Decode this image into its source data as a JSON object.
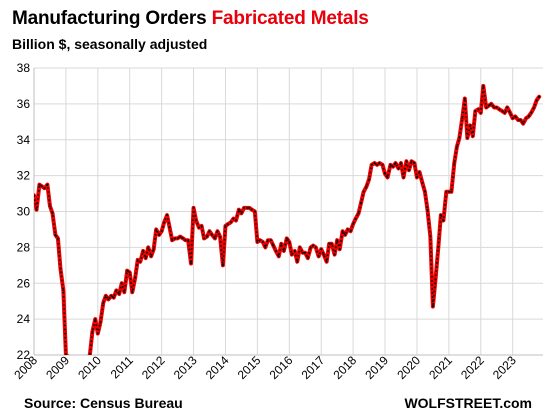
{
  "chart_data": {
    "type": "line",
    "title": "Manufacturing Orders",
    "title_highlight": "Fabricated Metals",
    "subtitle": "Billion $, seasonally adjusted",
    "ylim": [
      22,
      38
    ],
    "yticks": [
      22,
      24,
      26,
      28,
      30,
      32,
      34,
      36,
      38
    ],
    "xlim": [
      2008,
      2023.95
    ],
    "xticks": [
      "2008",
      "2009",
      "2010",
      "2011",
      "2012",
      "2013",
      "2014",
      "2015",
      "2016",
      "2017",
      "2018",
      "2019",
      "2020",
      "2021",
      "2022",
      "2023"
    ],
    "grid": true,
    "line_color": "#ee0000",
    "marker_color": "#000000",
    "series": [
      {
        "x": [
          2008.0,
          2008.08,
          2008.17,
          2008.25,
          2008.33,
          2008.42,
          2008.5,
          2008.58,
          2008.67,
          2008.75,
          2008.83,
          2008.92,
          2009.0,
          2009.25,
          2009.5,
          2009.75,
          2009.83,
          2009.92,
          2010.0,
          2010.08,
          2010.17,
          2010.25,
          2010.33,
          2010.42,
          2010.5,
          2010.58,
          2010.67,
          2010.75,
          2010.83,
          2010.92,
          2011.0,
          2011.08,
          2011.17,
          2011.25,
          2011.33,
          2011.42,
          2011.5,
          2011.58,
          2011.67,
          2011.75,
          2011.83,
          2011.92,
          2012.0,
          2012.08,
          2012.17,
          2012.25,
          2012.33,
          2012.42,
          2012.5,
          2012.58,
          2012.67,
          2012.75,
          2012.83,
          2012.92,
          2013.0,
          2013.08,
          2013.17,
          2013.25,
          2013.33,
          2013.42,
          2013.5,
          2013.58,
          2013.67,
          2013.75,
          2013.83,
          2013.92,
          2014.0,
          2014.08,
          2014.17,
          2014.25,
          2014.33,
          2014.42,
          2014.5,
          2014.58,
          2014.67,
          2014.75,
          2014.83,
          2014.92,
          2015.0,
          2015.08,
          2015.17,
          2015.25,
          2015.33,
          2015.42,
          2015.5,
          2015.58,
          2015.67,
          2015.75,
          2015.83,
          2015.92,
          2016.0,
          2016.08,
          2016.17,
          2016.25,
          2016.33,
          2016.42,
          2016.5,
          2016.58,
          2016.67,
          2016.75,
          2016.83,
          2016.92,
          2017.0,
          2017.08,
          2017.17,
          2017.25,
          2017.33,
          2017.42,
          2017.5,
          2017.58,
          2017.67,
          2017.75,
          2017.83,
          2017.92,
          2018.0,
          2018.08,
          2018.17,
          2018.25,
          2018.33,
          2018.42,
          2018.5,
          2018.58,
          2018.67,
          2018.75,
          2018.83,
          2018.92,
          2019.0,
          2019.08,
          2019.17,
          2019.25,
          2019.33,
          2019.42,
          2019.5,
          2019.58,
          2019.67,
          2019.75,
          2019.83,
          2019.92,
          2020.0,
          2020.08,
          2020.17,
          2020.25,
          2020.33,
          2020.42,
          2020.5,
          2020.58,
          2020.67,
          2020.75,
          2020.83,
          2020.92,
          2021.0,
          2021.08,
          2021.17,
          2021.25,
          2021.33,
          2021.42,
          2021.5,
          2021.58,
          2021.67,
          2021.75,
          2021.83,
          2021.92,
          2022.0,
          2022.08,
          2022.17,
          2022.25,
          2022.33,
          2022.42,
          2022.5,
          2022.58,
          2022.67,
          2022.75,
          2022.83,
          2022.92,
          2023.0,
          2023.08,
          2023.17,
          2023.25,
          2023.33,
          2023.42,
          2023.5,
          2023.58,
          2023.67,
          2023.75,
          2023.83
        ],
        "y": [
          30.9,
          30.1,
          31.5,
          31.4,
          31.3,
          31.5,
          30.3,
          29.9,
          28.7,
          28.5,
          26.8,
          25.6,
          22.0,
          21.7,
          21.5,
          22.0,
          23.3,
          24.0,
          23.2,
          23.8,
          24.9,
          25.3,
          25.1,
          25.3,
          25.2,
          25.6,
          25.4,
          26.0,
          25.5,
          26.7,
          26.6,
          25.5,
          26.3,
          27.3,
          27.2,
          27.8,
          27.4,
          28.0,
          27.5,
          27.9,
          29.0,
          28.7,
          28.9,
          29.4,
          29.8,
          29.1,
          28.4,
          28.5,
          28.5,
          28.6,
          28.5,
          28.4,
          28.4,
          27.1,
          30.2,
          29.5,
          29.1,
          29.2,
          28.5,
          28.6,
          28.9,
          28.7,
          28.5,
          28.9,
          28.6,
          27.0,
          29.2,
          29.3,
          29.4,
          29.6,
          29.5,
          30.1,
          29.9,
          30.2,
          30.2,
          30.2,
          30.1,
          30.0,
          28.3,
          28.4,
          28.3,
          28.0,
          28.4,
          28.4,
          28.1,
          27.8,
          27.5,
          28.2,
          27.8,
          28.5,
          28.3,
          27.6,
          27.8,
          27.2,
          28.0,
          27.7,
          27.7,
          27.4,
          28.0,
          28.1,
          28.0,
          27.5,
          27.9,
          27.6,
          27.2,
          28.2,
          28.2,
          27.6,
          28.4,
          27.9,
          28.9,
          28.7,
          29.0,
          28.9,
          29.3,
          29.6,
          29.9,
          30.5,
          31.1,
          31.4,
          31.8,
          32.6,
          32.7,
          32.6,
          32.7,
          32.6,
          32.1,
          31.9,
          32.6,
          32.5,
          32.7,
          32.4,
          32.7,
          31.9,
          32.8,
          32.3,
          32.8,
          32.7,
          31.9,
          32.2,
          31.6,
          31.1,
          30.1,
          28.6,
          24.7,
          26.2,
          28.0,
          29.8,
          29.5,
          31.1,
          31.1,
          31.1,
          32.7,
          33.6,
          34.1,
          35.2,
          36.3,
          34.1,
          34.8,
          34.2,
          35.6,
          35.7,
          35.5,
          37.0,
          35.8,
          35.9,
          36.0,
          35.8,
          35.8,
          35.7,
          35.6,
          35.5,
          35.8,
          35.5,
          35.2,
          35.3,
          35.1,
          35.1,
          34.9,
          35.2,
          35.3,
          35.5,
          35.8,
          36.2,
          36.4
        ]
      }
    ]
  },
  "footer": {
    "source": "Source: Census Bureau",
    "brand": "WOLFSTREET.com"
  }
}
